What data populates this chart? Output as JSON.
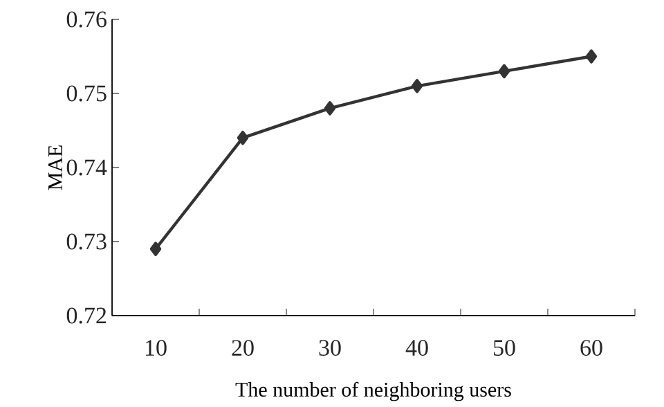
{
  "chart_data": {
    "type": "line",
    "xlabel": "The number of neighboring users",
    "ylabel": "MAE",
    "categories": [
      "10",
      "20",
      "30",
      "40",
      "50",
      "60"
    ],
    "series": [
      {
        "color": "#333333",
        "values": [
          0.729,
          0.744,
          0.748,
          0.751,
          0.753,
          0.755
        ]
      }
    ],
    "ylim": [
      0.72,
      0.76
    ],
    "yticks": [
      0.72,
      0.73,
      0.74,
      0.75,
      0.76
    ],
    "marker": "diamond",
    "line_style": "solid",
    "grid": false
  }
}
